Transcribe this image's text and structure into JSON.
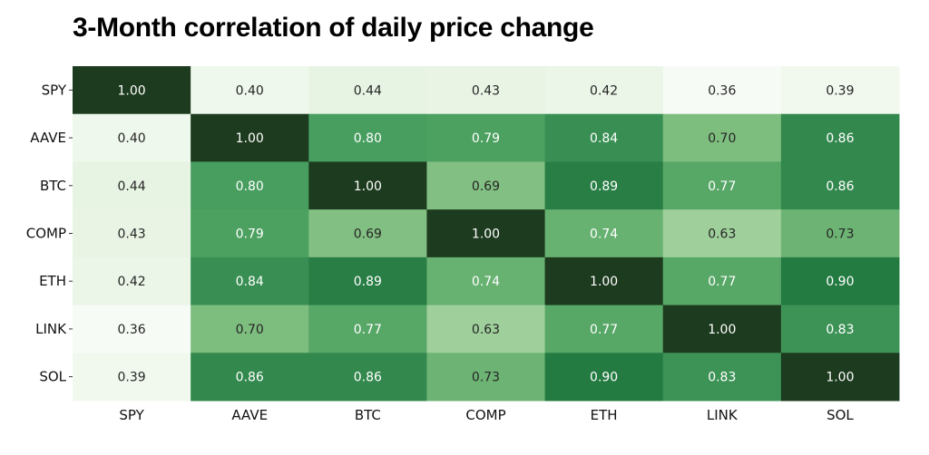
{
  "chart_data": {
    "type": "heatmap",
    "title": "3-Month correlation of daily price change",
    "xlabel": "",
    "ylabel": "",
    "x_categories": [
      "SPY",
      "AAVE",
      "BTC",
      "COMP",
      "ETH",
      "LINK",
      "SOL"
    ],
    "y_categories": [
      "SPY",
      "AAVE",
      "BTC",
      "COMP",
      "ETH",
      "LINK",
      "SOL"
    ],
    "values": [
      [
        1.0,
        0.4,
        0.44,
        0.43,
        0.42,
        0.36,
        0.39
      ],
      [
        0.4,
        1.0,
        0.8,
        0.79,
        0.84,
        0.7,
        0.86
      ],
      [
        0.44,
        0.8,
        1.0,
        0.69,
        0.89,
        0.77,
        0.86
      ],
      [
        0.43,
        0.79,
        0.69,
        1.0,
        0.74,
        0.63,
        0.73
      ],
      [
        0.42,
        0.84,
        0.89,
        0.74,
        1.0,
        0.77,
        0.9
      ],
      [
        0.36,
        0.7,
        0.77,
        0.63,
        0.77,
        1.0,
        0.83
      ],
      [
        0.39,
        0.86,
        0.86,
        0.73,
        0.9,
        0.83,
        1.0
      ]
    ],
    "value_format": "0.00",
    "colormap": "Greens",
    "color_low": "#f7fcf5",
    "color_high": "#1d3b1f",
    "legend": "none"
  }
}
